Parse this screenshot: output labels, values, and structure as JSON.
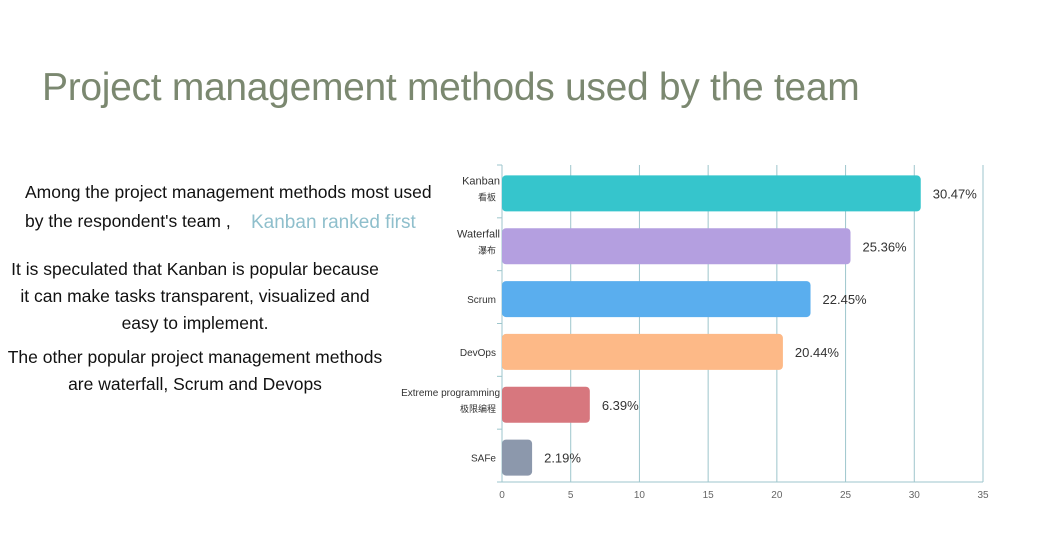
{
  "slide": {
    "title": "Project management methods used by the team",
    "intro_line1": "Among the project management methods most used",
    "intro_line2": "by the respondent's team ,",
    "highlight": "Kanban ranked first",
    "paragraph1": "It is speculated that Kanban is popular because it can make tasks transparent, visualized and easy to implement.",
    "paragraph2": "The other popular project management methods are waterfall, Scrum and Devops"
  },
  "chart_data": {
    "type": "bar",
    "orientation": "horizontal",
    "title": "",
    "xlabel": "",
    "ylabel": "",
    "xlim": [
      0,
      35
    ],
    "x_ticks": [
      "0",
      "5",
      "10",
      "15",
      "20",
      "25",
      "30",
      "35"
    ],
    "grid": true,
    "categories": [
      {
        "label": "Kanban",
        "sublabel": "看板",
        "value": 30.47,
        "value_label": "30.47%",
        "color": "#36c5cc"
      },
      {
        "label": "Waterfall",
        "sublabel": "瀑布",
        "value": 25.36,
        "value_label": "25.36%",
        "color": "#b49fe0"
      },
      {
        "label": "Scrum",
        "sublabel": "",
        "value": 22.45,
        "value_label": "22.45%",
        "color": "#5aaeee"
      },
      {
        "label": "DevOps",
        "sublabel": "",
        "value": 20.44,
        "value_label": "20.44%",
        "color": "#fdb987"
      },
      {
        "label": "Extreme programming",
        "sublabel": "极限编程",
        "value": 6.39,
        "value_label": "6.39%",
        "color": "#d7777e"
      },
      {
        "label": "SAFe",
        "sublabel": "",
        "value": 2.19,
        "value_label": "2.19%",
        "color": "#8c98ac"
      }
    ]
  }
}
